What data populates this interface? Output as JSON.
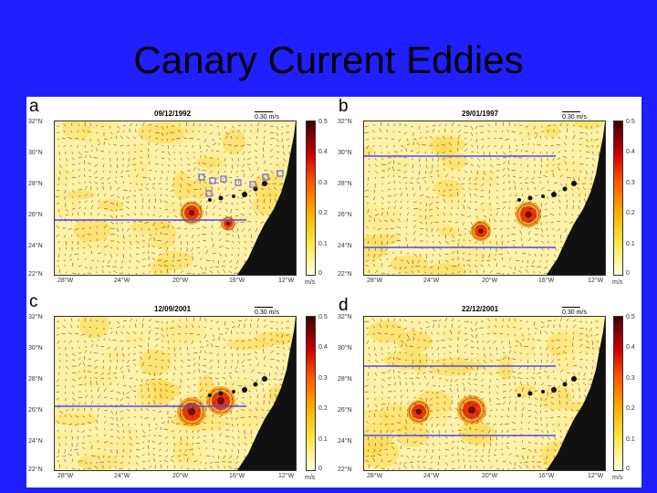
{
  "title": "Canary Current Eddies",
  "panels": [
    {
      "label": "a",
      "date": "09/12/1992",
      "scale": "0.30 m/s"
    },
    {
      "label": "b",
      "date": "29/01/1997",
      "scale": "0.30 m/s"
    },
    {
      "label": "c",
      "date": "12/09/2001",
      "scale": "0.30 m/s"
    },
    {
      "label": "d",
      "date": "22/12/2001",
      "scale": "0.30 m/s"
    }
  ],
  "lat_ticks": [
    "32°N",
    "30°N",
    "28°N",
    "26°N",
    "24°N",
    "22°N"
  ],
  "lon_ticks": [
    "28°W",
    "24°W",
    "20°W",
    "16°W",
    "12°W"
  ],
  "colorbar": {
    "ticks": [
      "0.5",
      "0.4",
      "0.3",
      "0.2",
      "0.1",
      "0"
    ],
    "unit": "m/s"
  },
  "colors": {
    "background": "#1f1fff",
    "land": "#111111",
    "section_line": "#4a4aff"
  }
}
